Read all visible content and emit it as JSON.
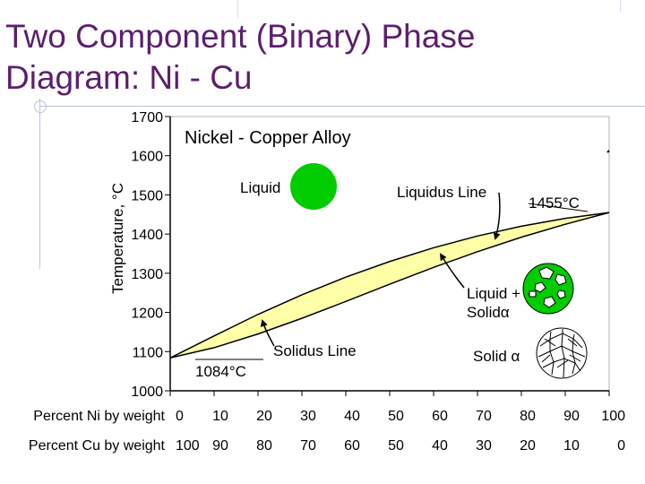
{
  "slide": {
    "title_line1": "Two Component (Binary) Phase",
    "title_line2": "Diagram: Ni - Cu"
  },
  "colors": {
    "title": "#5b1f6e",
    "two_phase_fill": "#ffffa8",
    "liquid_marker": "#00cc00",
    "solid_marker": "#ffffff",
    "line": "#000000"
  },
  "chart_data": {
    "type": "phase-diagram",
    "title": "Nickel - Copper Alloy",
    "ylabel": "Temperature, °C",
    "xlabel_ni": "Percent Ni by weight",
    "xlabel_cu": "Percent Cu by weight",
    "ylim": [
      1000,
      1700
    ],
    "xlim": [
      0,
      100
    ],
    "y_ticks": [
      1000,
      1100,
      1200,
      1300,
      1400,
      1500,
      1600,
      1700
    ],
    "ni_ticks": [
      0,
      10,
      20,
      30,
      40,
      50,
      60,
      70,
      80,
      90,
      100
    ],
    "cu_ticks": [
      "100",
      "90",
      "80",
      "70",
      "60",
      "50",
      "40",
      "30",
      "20",
      "10",
      "0"
    ],
    "liquidus": [
      [
        0,
        1084
      ],
      [
        10,
        1140
      ],
      [
        20,
        1195
      ],
      [
        30,
        1245
      ],
      [
        40,
        1290
      ],
      [
        50,
        1330
      ],
      [
        60,
        1365
      ],
      [
        70,
        1395
      ],
      [
        80,
        1420
      ],
      [
        90,
        1440
      ],
      [
        100,
        1455
      ]
    ],
    "solidus": [
      [
        0,
        1084
      ],
      [
        10,
        1110
      ],
      [
        20,
        1145
      ],
      [
        30,
        1185
      ],
      [
        40,
        1228
      ],
      [
        50,
        1272
      ],
      [
        60,
        1315
      ],
      [
        70,
        1355
      ],
      [
        80,
        1392
      ],
      [
        90,
        1425
      ],
      [
        100,
        1455
      ]
    ],
    "regions": {
      "liquid": "Liquid",
      "two_phase_line1": "Liquid +",
      "two_phase_line2": "Solidα",
      "solid": "Solid α"
    },
    "annotations": {
      "liquidus_line": "Liquidus Line",
      "solidus_line": "Solidus Line",
      "cu_melting_point": "1084°C",
      "ni_melting_point": "1455°C"
    }
  }
}
